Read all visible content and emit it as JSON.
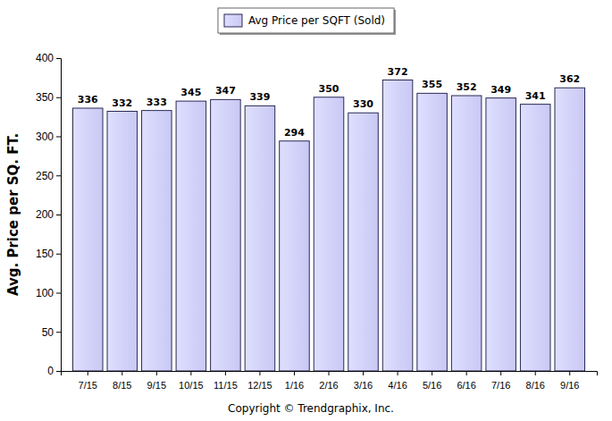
{
  "chart_data": {
    "type": "bar",
    "y_label": "Avg. Price per SQ. FT.",
    "annotation": "Copyright © Trendgraphix, Inc.",
    "categories": [
      "7/15",
      "8/15",
      "9/15",
      "10/15",
      "11/15",
      "12/15",
      "1/16",
      "2/16",
      "3/16",
      "4/16",
      "5/16",
      "6/16",
      "7/16",
      "8/16",
      "9/16"
    ],
    "series": [
      {
        "name": "Avg Price per SQFT (Sold)",
        "color": "#c8c8f4",
        "values": [
          336,
          332,
          333,
          345,
          347,
          339,
          294,
          350,
          330,
          372,
          355,
          352,
          349,
          341,
          362
        ]
      }
    ],
    "ylim": [
      0,
      400
    ],
    "yticks": [
      0,
      50,
      100,
      150,
      200,
      250,
      300,
      350,
      400
    ],
    "legend": "top",
    "data_labels": true,
    "grid": false
  }
}
